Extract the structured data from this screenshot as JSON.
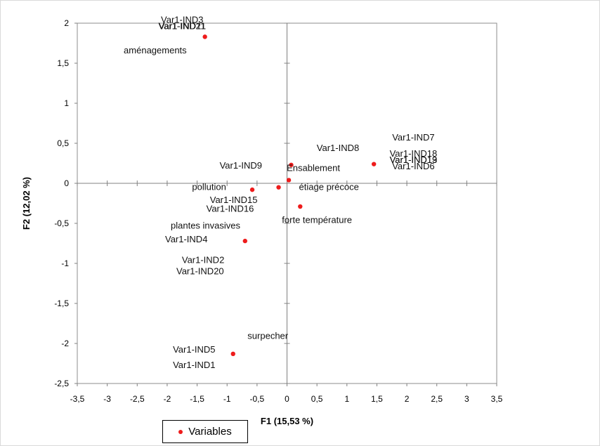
{
  "chart_data": {
    "type": "scatter",
    "title": "",
    "xlabel": "F1 (15,53 %)",
    "ylabel": "F2 (12,02 %)",
    "xlim": [
      -3.5,
      3.5
    ],
    "ylim": [
      -2.5,
      2
    ],
    "x_ticks": [
      -3.5,
      -3,
      -2.5,
      -2,
      -1.5,
      -1,
      -0.5,
      0,
      0.5,
      1,
      1.5,
      2,
      2.5,
      3,
      3.5
    ],
    "y_ticks": [
      -2.5,
      -2,
      -1.5,
      -1,
      -0.5,
      0,
      0.5,
      1,
      1.5,
      2
    ],
    "x_tick_labels": [
      "-3,5",
      "-3",
      "-2,5",
      "-2",
      "-1,5",
      "-1",
      "-0,5",
      "0",
      "0,5",
      "1",
      "1,5",
      "2",
      "2,5",
      "3",
      "3,5"
    ],
    "y_tick_labels": [
      "-2,5",
      "-2",
      "-1,5",
      "-1",
      "-0,5",
      "0",
      "0,5",
      "1",
      "1,5",
      "2"
    ],
    "grid": false,
    "legend": {
      "position": "bottom",
      "entries": [
        "Variables"
      ]
    },
    "color": "#ee1c1c",
    "points": [
      {
        "x": -1.37,
        "y": 1.83
      },
      {
        "x": 0.07,
        "y": 0.23
      },
      {
        "x": 1.45,
        "y": 0.24
      },
      {
        "x": -0.58,
        "y": -0.08
      },
      {
        "x": -0.14,
        "y": -0.05
      },
      {
        "x": 0.03,
        "y": 0.04
      },
      {
        "x": 0.22,
        "y": -0.29
      },
      {
        "x": -0.7,
        "y": -0.72
      },
      {
        "x": -0.9,
        "y": -2.13
      }
    ],
    "labels": [
      {
        "text": "Var1-IND3",
        "x": -1.75,
        "y": 2.04,
        "anchor": "middle"
      },
      {
        "text": "Var1-IND11",
        "x": -1.75,
        "y": 1.96,
        "anchor": "middle"
      },
      {
        "text": "Var1-IND21",
        "x": -1.75,
        "y": 1.96,
        "anchor": "middle"
      },
      {
        "text": "aménagements",
        "x": -2.2,
        "y": 1.66,
        "anchor": "middle"
      },
      {
        "text": "Var1-IND7",
        "x": 2.11,
        "y": 0.57,
        "anchor": "middle"
      },
      {
        "text": "Var1-IND8",
        "x": 0.85,
        "y": 0.44,
        "anchor": "middle"
      },
      {
        "text": "Var1-IND18",
        "x": 2.11,
        "y": 0.37,
        "anchor": "middle"
      },
      {
        "text": "Var1-IND13",
        "x": 2.11,
        "y": 0.29,
        "anchor": "middle"
      },
      {
        "text": "Var1-IND19",
        "x": 2.11,
        "y": 0.29,
        "anchor": "middle"
      },
      {
        "text": "Var1-IND6",
        "x": 2.11,
        "y": 0.21,
        "anchor": "middle"
      },
      {
        "text": "Var1-IND9",
        "x": -0.77,
        "y": 0.22,
        "anchor": "middle"
      },
      {
        "text": "Ensablement",
        "x": 0.44,
        "y": 0.19,
        "anchor": "middle"
      },
      {
        "text": "pollution",
        "x": -1.3,
        "y": -0.05,
        "anchor": "middle"
      },
      {
        "text": "étiage précoce",
        "x": 0.7,
        "y": -0.05,
        "anchor": "middle"
      },
      {
        "text": "Var1-IND15",
        "x": -0.89,
        "y": -0.21,
        "anchor": "middle"
      },
      {
        "text": "Var1-IND16",
        "x": -0.95,
        "y": -0.32,
        "anchor": "middle"
      },
      {
        "text": "forte température",
        "x": 0.5,
        "y": -0.46,
        "anchor": "middle"
      },
      {
        "text": "plantes invasives",
        "x": -1.36,
        "y": -0.53,
        "anchor": "middle"
      },
      {
        "text": "Var1-IND4",
        "x": -1.68,
        "y": -0.7,
        "anchor": "middle"
      },
      {
        "text": "Var1-IND2",
        "x": -1.4,
        "y": -0.96,
        "anchor": "middle"
      },
      {
        "text": "Var1-IND20",
        "x": -1.45,
        "y": -1.1,
        "anchor": "middle"
      },
      {
        "text": "surpecher",
        "x": -0.32,
        "y": -1.91,
        "anchor": "middle"
      },
      {
        "text": "Var1-IND5",
        "x": -1.55,
        "y": -2.08,
        "anchor": "middle"
      },
      {
        "text": "Var1-IND1",
        "x": -1.55,
        "y": -2.27,
        "anchor": "middle"
      }
    ]
  }
}
